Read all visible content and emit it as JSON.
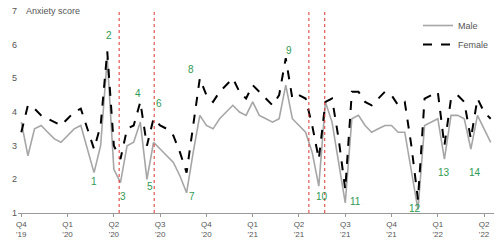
{
  "chart_data": {
    "type": "line",
    "y_label": "Anxiety score",
    "categories": [
      "Q4 '19",
      null,
      null,
      null,
      null,
      null,
      null,
      "Q1 '20",
      null,
      null,
      null,
      null,
      null,
      null,
      "Q2 '20",
      null,
      null,
      null,
      null,
      null,
      null,
      "Q3 '20",
      null,
      null,
      null,
      null,
      null,
      null,
      "Q4 '20",
      null,
      null,
      null,
      null,
      null,
      null,
      "Q1 '21",
      null,
      null,
      null,
      null,
      null,
      null,
      "Q2 '21",
      null,
      null,
      null,
      null,
      null,
      null,
      "Q3 '21",
      null,
      null,
      null,
      null,
      null,
      null,
      "Q4 '21",
      null,
      null,
      null,
      null,
      null,
      null,
      "Q1 '22",
      null,
      null,
      null,
      null,
      null,
      null,
      "Q2 '22",
      null
    ],
    "series": [
      {
        "name": "Male",
        "color": "#a6a6a6",
        "line_style": "solid",
        "values": [
          3.7,
          2.7,
          3.5,
          3.6,
          3.4,
          3.2,
          3.1,
          3.3,
          3.5,
          3.6,
          2.9,
          2.2,
          3.0,
          5.6,
          2.3,
          1.9,
          3.0,
          3.1,
          3.7,
          2.0,
          3.1,
          2.9,
          2.7,
          2.5,
          2.1,
          1.6,
          2.8,
          3.9,
          3.6,
          3.5,
          3.8,
          4.0,
          4.2,
          4.0,
          3.9,
          4.3,
          3.9,
          3.8,
          3.7,
          3.8,
          4.8,
          3.8,
          3.6,
          3.4,
          2.8,
          1.8,
          4.3,
          3.7,
          2.5,
          1.3,
          3.8,
          3.9,
          3.6,
          3.4,
          3.5,
          3.6,
          3.6,
          3.4,
          3.4,
          2.2,
          1.1,
          3.6,
          3.7,
          3.8,
          2.6,
          3.9,
          3.9,
          3.8,
          2.9,
          3.9,
          3.5,
          3.1
        ]
      },
      {
        "name": "Female",
        "color": "#000000",
        "line_style": "dash",
        "values": [
          3.4,
          4.2,
          4.1,
          3.9,
          3.8,
          3.7,
          3.6,
          3.8,
          4.0,
          4.1,
          3.5,
          2.9,
          3.6,
          5.8,
          3.0,
          2.6,
          3.5,
          3.6,
          4.3,
          3.0,
          3.8,
          3.6,
          3.5,
          3.3,
          2.8,
          2.2,
          3.6,
          5.0,
          4.5,
          4.3,
          4.6,
          4.8,
          5.0,
          4.6,
          4.4,
          4.8,
          4.6,
          4.4,
          4.2,
          4.5,
          5.6,
          4.4,
          4.5,
          4.4,
          3.6,
          2.6,
          4.3,
          4.4,
          3.2,
          1.7,
          4.6,
          4.6,
          4.3,
          4.2,
          4.4,
          4.6,
          4.5,
          4.2,
          4.3,
          3.0,
          1.4,
          4.4,
          4.5,
          4.6,
          3.0,
          4.4,
          4.5,
          4.3,
          3.2,
          4.4,
          4.0,
          3.8
        ]
      }
    ],
    "reference_lines": [
      14.8,
      20.1,
      43.5,
      45.9
    ],
    "annotations": [
      {
        "text": "1",
        "x": 11.0,
        "y": 1.93
      },
      {
        "text": "2",
        "x": 13.3,
        "y": 6.28
      },
      {
        "text": "3",
        "x": 15.4,
        "y": 1.49
      },
      {
        "text": "4",
        "x": 17.6,
        "y": 4.54
      },
      {
        "text": "5",
        "x": 19.4,
        "y": 1.78
      },
      {
        "text": "6",
        "x": 20.9,
        "y": 4.25
      },
      {
        "text": "7",
        "x": 25.8,
        "y": 1.49
      },
      {
        "text": "8",
        "x": 25.6,
        "y": 5.26
      },
      {
        "text": "9",
        "x": 40.5,
        "y": 5.84
      },
      {
        "text": "10",
        "x": 45.5,
        "y": 1.49
      },
      {
        "text": "11",
        "x": 50.5,
        "y": 1.35
      },
      {
        "text": "12",
        "x": 59.6,
        "y": 1.12
      },
      {
        "text": "13",
        "x": 64.0,
        "y": 2.2
      },
      {
        "text": "14",
        "x": 68.6,
        "y": 2.2
      }
    ],
    "ylim": [
      1,
      7
    ],
    "yticks": [
      1,
      2,
      3,
      4,
      5,
      6,
      7
    ],
    "grid": false,
    "legend": "top right"
  }
}
